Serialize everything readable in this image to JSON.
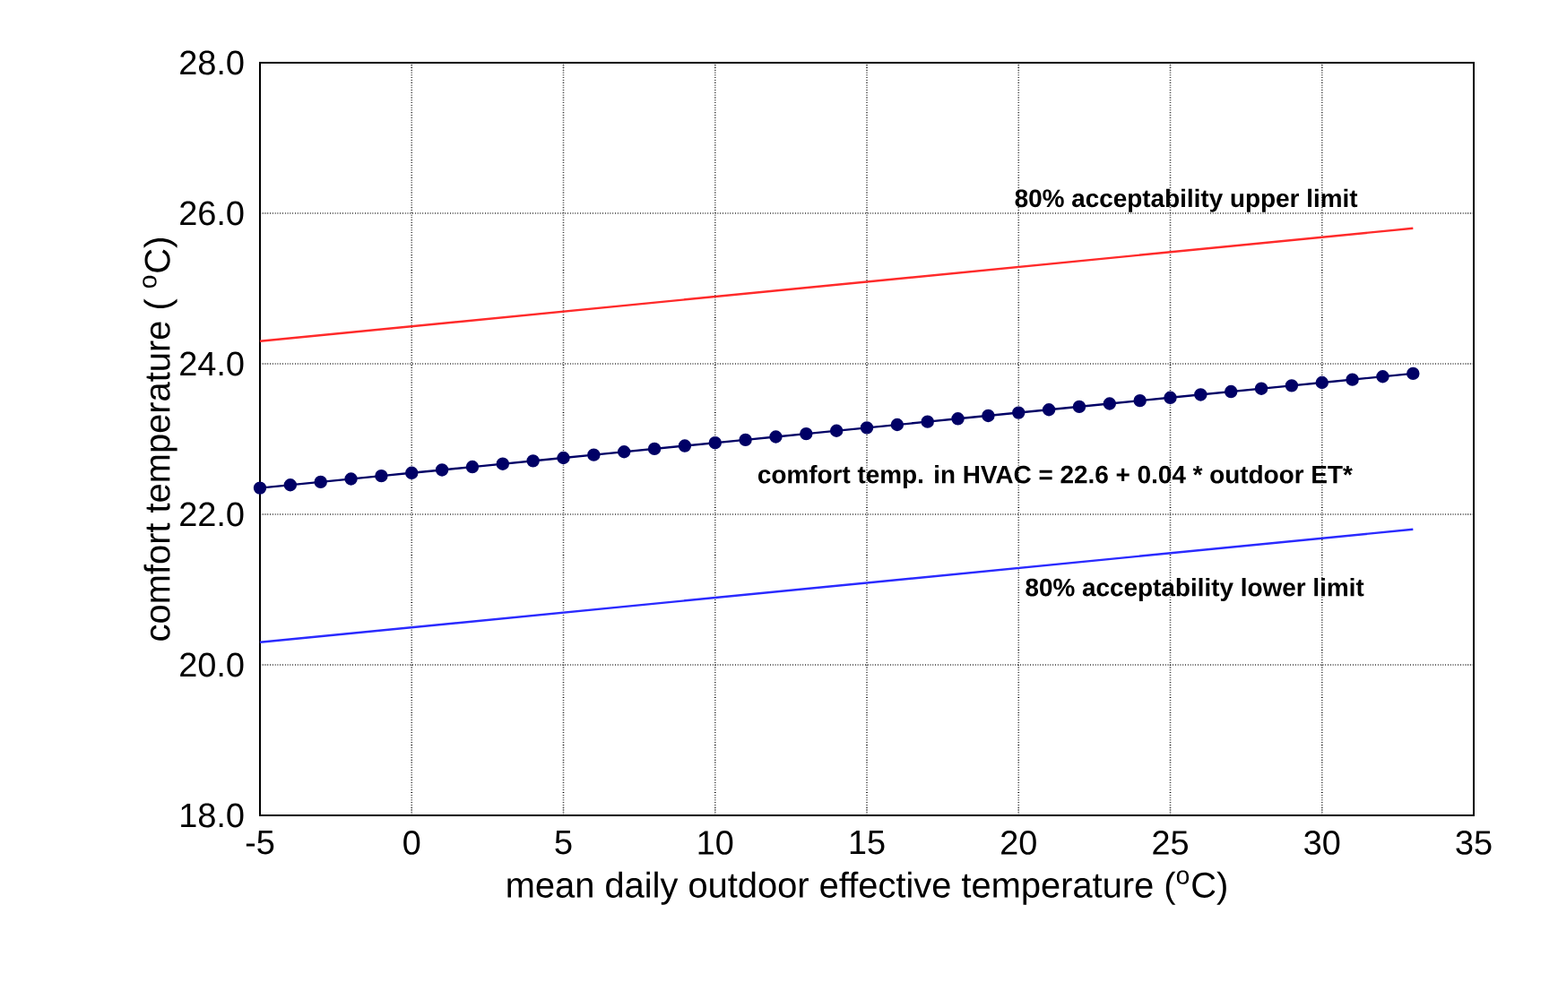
{
  "chart_data": {
    "type": "line",
    "xlabel": "mean daily outdoor effective temperature ($^{o}$C)",
    "ylabel": "comfort temperature ( $^{o}$C)",
    "xlim": [
      -5,
      35
    ],
    "xticks": [
      -5,
      0,
      5,
      10,
      15,
      20,
      25,
      30,
      35
    ],
    "ylim": [
      18,
      28
    ],
    "yticks": [
      {
        "value": 18,
        "label": "18.0"
      },
      {
        "value": 20,
        "label": "20.0"
      },
      {
        "value": 22,
        "label": "22.0"
      },
      {
        "value": 24,
        "label": "24.0"
      },
      {
        "value": 26,
        "label": "26.0"
      },
      {
        "value": 28,
        "label": "28.0"
      }
    ],
    "grid": true,
    "series": [
      {
        "color": "#ff2a2a",
        "x": [
          -5,
          33
        ],
        "values": [
          24.3,
          25.8
        ]
      },
      {
        "color": "#2a2aff",
        "x": [
          -5,
          33
        ],
        "values": [
          20.3,
          21.8
        ]
      },
      {
        "color": "#000066",
        "marker": "circle",
        "x": [
          -5,
          -4,
          -3,
          -2,
          -1,
          0,
          1,
          2,
          3,
          4,
          5,
          6,
          7,
          8,
          9,
          10,
          11,
          12,
          13,
          14,
          15,
          16,
          17,
          18,
          19,
          20,
          21,
          22,
          23,
          24,
          25,
          26,
          27,
          28,
          29,
          30,
          31,
          32,
          33
        ],
        "values": [
          22.35,
          22.39,
          22.43,
          22.47,
          22.51,
          22.55,
          22.59,
          22.63,
          22.67,
          22.71,
          22.75,
          22.79,
          22.83,
          22.87,
          22.91,
          22.95,
          22.99,
          23.03,
          23.07,
          23.11,
          23.15,
          23.19,
          23.23,
          23.27,
          23.31,
          23.35,
          23.39,
          23.43,
          23.47,
          23.51,
          23.55,
          23.59,
          23.63,
          23.67,
          23.71,
          23.75,
          23.79,
          23.83,
          23.87
        ]
      }
    ],
    "annotations": [
      "80% acceptability upper limit",
      "comfort temp. in HVAC = 22.6 + 0.04 * outdoor ET*",
      "80% acceptability lower limit"
    ]
  }
}
